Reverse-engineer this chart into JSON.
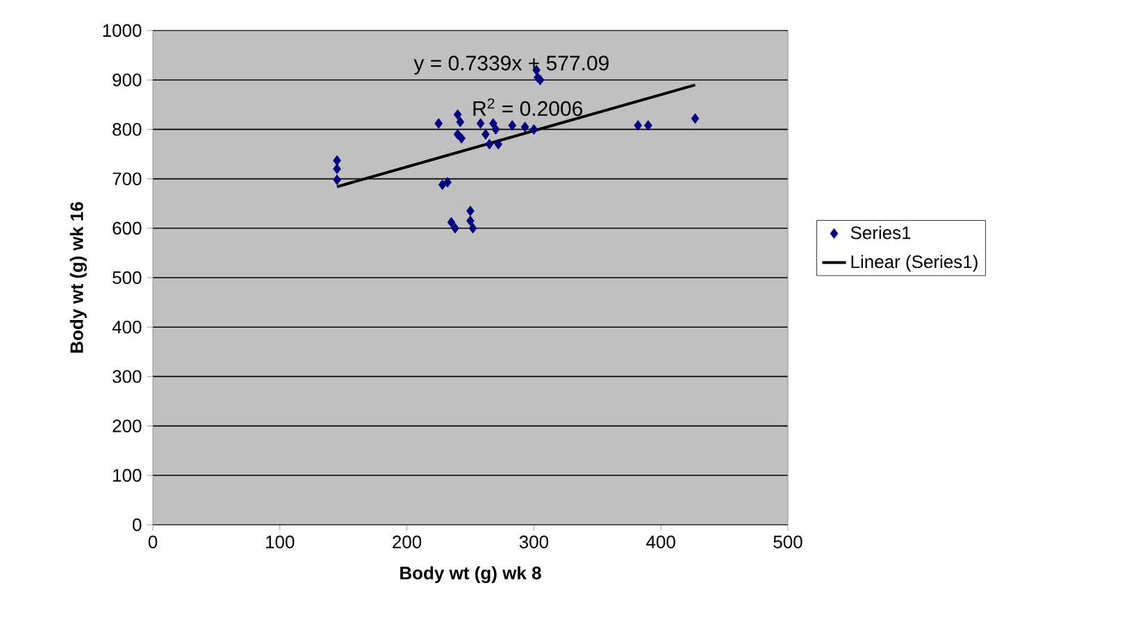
{
  "chart_data": {
    "type": "scatter",
    "xlabel": "Body wt (g) wk 8",
    "ylabel": "Body wt (g) wk 16",
    "xlim": [
      0,
      500
    ],
    "xticks": [
      0,
      100,
      200,
      300,
      400,
      500
    ],
    "ylim": [
      0,
      1000
    ],
    "yticks": [
      0,
      100,
      200,
      300,
      400,
      500,
      600,
      700,
      800,
      900,
      1000
    ],
    "grid": "y",
    "legend": "right",
    "annotations": [
      "y = 0.7339x + 577.09",
      "R$^{2}$ = 0.2006"
    ],
    "series": [
      {
        "name": "Series1",
        "marker": "diamond",
        "color": "#000080",
        "x": [
          145,
          145,
          145,
          225,
          228,
          232,
          235,
          238,
          240,
          242,
          240,
          243,
          250,
          250,
          252,
          258,
          262,
          265,
          268,
          270,
          272,
          283,
          293,
          300,
          302,
          303,
          305,
          382,
          390,
          427
        ],
        "values": [
          737,
          720,
          698,
          812,
          688,
          693,
          612,
          600,
          830,
          815,
          790,
          782,
          635,
          615,
          600,
          812,
          790,
          770,
          812,
          800,
          770,
          808,
          805,
          800,
          920,
          905,
          900,
          808,
          808,
          822
        ]
      },
      {
        "name": "Linear (Series1)",
        "type": "line",
        "marker": "none",
        "color": "#000000",
        "x": [
          145,
          427
        ],
        "values": [
          684,
          890
        ]
      }
    ]
  }
}
